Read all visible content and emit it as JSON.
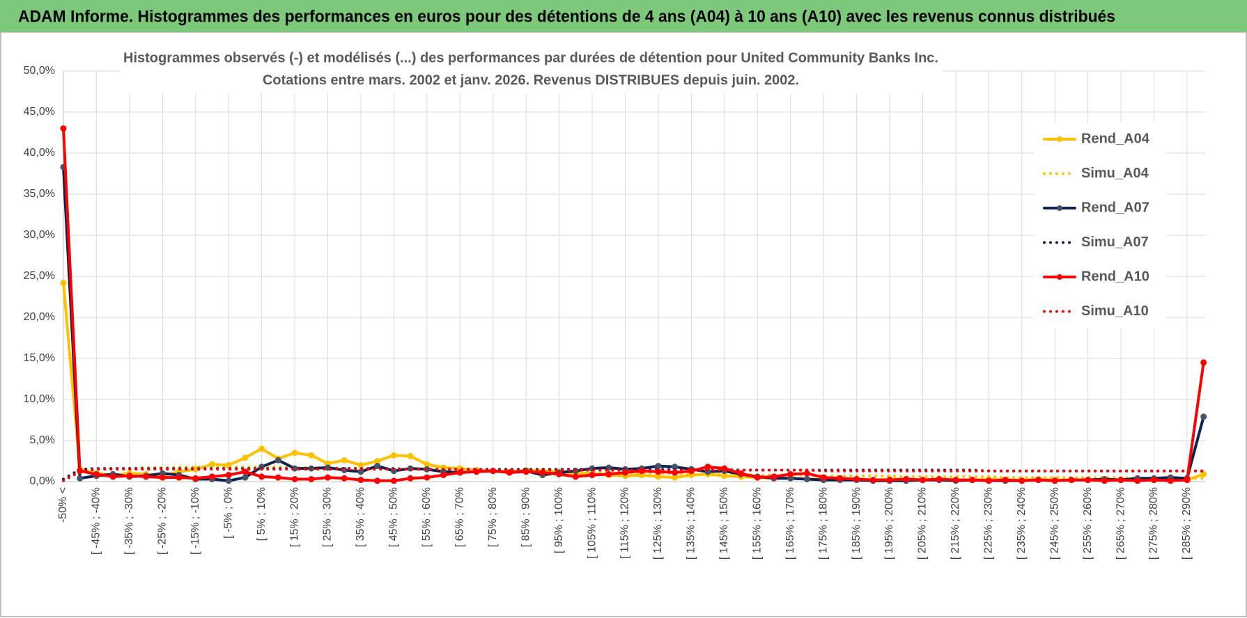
{
  "chart_data": {
    "type": "line",
    "title": "ADAM Informe. Histogrammes des performances en euros pour des détentions de 4 ans (A04) à 10 ans (A10) avec les revenus connus distribués",
    "subtitle": [
      "Histogrammes observés (-) et modélisés (...) des performances par durées de détention pour United Community Banks Inc.",
      "Cotations entre mars. 2002  et janv. 2026. Revenus DISTRIBUES depuis juin. 2002."
    ],
    "categories": [
      "-50% <",
      null,
      "[ -45% ; -40%",
      null,
      "[ -35% ; -30%",
      null,
      "[ -25% ; -20%",
      null,
      "[ -15% ; -10%",
      null,
      "[ -5% ; 0%",
      null,
      "[ 5% ; 10%",
      null,
      "[ 15% ; 20%",
      null,
      "[ 25% ; 30%",
      null,
      "[ 35% ; 40%",
      null,
      "[ 45% ; 50%",
      null,
      "[ 55% ; 60%",
      null,
      "[ 65% ; 70%",
      null,
      "[ 75% ; 80%",
      null,
      "[ 85% ; 90%",
      null,
      "[ 95% ; 100%",
      null,
      "[ 105% ; 110%",
      null,
      "[ 115% ; 120%",
      null,
      "[ 125% ; 130%",
      null,
      "[ 135% ; 140%",
      null,
      "[ 145% ; 150%",
      null,
      "[ 155% ; 160%",
      null,
      "[ 165% ; 170%",
      null,
      "[ 175% ; 180%",
      null,
      "[ 185% ; 190%",
      null,
      "[ 195% ; 200%",
      null,
      "[ 205% ; 210%",
      null,
      "[ 215% ; 220%",
      null,
      "[ 225% ; 230%",
      null,
      "[ 235% ; 240%",
      null,
      "[ 245% ; 250%",
      null,
      "[ 255% ; 260%",
      null,
      "[ 265% ; 270%",
      null,
      "[ 275% ; 280%",
      null,
      "[ 285% ; 290%",
      null
    ],
    "series": [
      {
        "name": "Rend_A04",
        "color": "#FFC000",
        "line_style": "solid",
        "markers": true,
        "values": [
          24.2,
          1.5,
          1.0,
          0.8,
          1.0,
          0.9,
          0.7,
          1.2,
          1.5,
          2.1,
          2.0,
          2.9,
          4.0,
          2.8,
          3.5,
          3.2,
          2.2,
          2.6,
          2.0,
          2.5,
          3.2,
          3.1,
          2.1,
          1.7,
          1.6,
          1.4,
          1.3,
          1.2,
          1.4,
          1.3,
          1.2,
          1.0,
          1.0,
          0.8,
          0.7,
          0.8,
          0.6,
          0.5,
          0.8,
          0.9,
          0.7,
          0.6,
          0.5,
          0.4,
          0.4,
          0.3,
          0.3,
          0.3,
          0.3,
          0.2,
          0.3,
          0.3,
          0.2,
          0.3,
          0.2,
          0.2,
          0.3,
          0.2,
          0.2,
          0.3,
          0.2,
          0.2,
          0.2,
          0.2,
          0.2,
          0.2,
          0.2,
          0.2,
          0.2,
          0.9
        ]
      },
      {
        "name": "Simu_A04",
        "color": "#FFC000",
        "line_style": "dotted",
        "markers": false,
        "values": [
          0.3,
          1.4,
          1.5,
          1.6,
          1.6,
          1.7,
          1.7,
          1.8,
          1.8,
          1.8,
          1.8,
          1.8,
          1.8,
          1.8,
          1.7,
          1.7,
          1.7,
          1.6,
          1.6,
          1.6,
          1.5,
          1.5,
          1.5,
          1.4,
          1.4,
          1.4,
          1.3,
          1.3,
          1.3,
          1.2,
          1.2,
          1.2,
          1.1,
          1.1,
          1.1,
          1.0,
          1.0,
          1.0,
          0.9,
          0.9,
          0.9,
          0.9,
          0.8,
          0.8,
          0.8,
          0.8,
          0.7,
          0.7,
          0.7,
          0.7,
          0.7,
          0.6,
          0.6,
          0.6,
          0.6,
          0.6,
          0.6,
          0.5,
          0.5,
          0.5,
          0.5,
          0.5,
          0.5,
          0.5,
          0.5,
          0.4,
          0.4,
          0.4,
          0.4,
          0.4
        ]
      },
      {
        "name": "Rend_A07",
        "color": "#0E2151",
        "line_style": "solid",
        "markers": true,
        "values": [
          38.3,
          0.4,
          0.7,
          0.9,
          0.6,
          0.7,
          1.0,
          0.8,
          0.3,
          0.3,
          0.1,
          0.5,
          1.8,
          2.6,
          1.6,
          1.6,
          1.7,
          1.4,
          1.2,
          1.9,
          1.3,
          1.6,
          1.5,
          1.2,
          1.1,
          1.2,
          1.3,
          1.1,
          1.3,
          0.8,
          1.1,
          1.3,
          1.6,
          1.7,
          1.5,
          1.6,
          1.9,
          1.8,
          1.5,
          1.2,
          1.3,
          0.9,
          0.6,
          0.4,
          0.4,
          0.3,
          0.2,
          0.2,
          0.2,
          0.1,
          0.1,
          0.1,
          0.2,
          0.2,
          0.1,
          0.2,
          0.1,
          0.1,
          0.1,
          0.2,
          0.1,
          0.2,
          0.2,
          0.3,
          0.2,
          0.4,
          0.4,
          0.5,
          0.4,
          7.9
        ]
      },
      {
        "name": "Simu_A07",
        "color": "#0E2151",
        "line_style": "dotted",
        "markers": false,
        "values": [
          0.3,
          1.5,
          1.6,
          1.6,
          1.6,
          1.6,
          1.6,
          1.6,
          1.6,
          1.6,
          1.6,
          1.6,
          1.6,
          1.6,
          1.6,
          1.6,
          1.6,
          1.6,
          1.6,
          1.6,
          1.6,
          1.5,
          1.5,
          1.5,
          1.5,
          1.5,
          1.5,
          1.5,
          1.5,
          1.5,
          1.5,
          1.5,
          1.5,
          1.5,
          1.5,
          1.5,
          1.5,
          1.5,
          1.5,
          1.5,
          1.5,
          1.4,
          1.4,
          1.4,
          1.4,
          1.4,
          1.4,
          1.4,
          1.4,
          1.4,
          1.4,
          1.4,
          1.4,
          1.4,
          1.4,
          1.4,
          1.3,
          1.3,
          1.3,
          1.3,
          1.3,
          1.3,
          1.3,
          1.3,
          1.3,
          1.3,
          1.3,
          1.3,
          1.3,
          1.3
        ]
      },
      {
        "name": "Rend_A10",
        "color": "#FF0000",
        "line_style": "solid",
        "markers": true,
        "values": [
          43.0,
          1.3,
          0.9,
          0.6,
          0.7,
          0.6,
          0.5,
          0.5,
          0.4,
          0.6,
          0.8,
          1.2,
          0.6,
          0.5,
          0.3,
          0.3,
          0.5,
          0.4,
          0.2,
          0.1,
          0.1,
          0.4,
          0.5,
          0.8,
          1.1,
          1.2,
          1.3,
          1.1,
          1.2,
          1.1,
          0.9,
          0.6,
          0.8,
          0.9,
          1.1,
          1.3,
          1.2,
          1.1,
          1.3,
          1.8,
          1.6,
          1.0,
          0.5,
          0.6,
          0.9,
          1.0,
          0.5,
          0.4,
          0.3,
          0.2,
          0.2,
          0.3,
          0.2,
          0.3,
          0.2,
          0.2,
          0.1,
          0.2,
          0.1,
          0.2,
          0.1,
          0.2,
          0.2,
          0.1,
          0.2,
          0.1,
          0.2,
          0.1,
          0.2,
          14.5
        ]
      },
      {
        "name": "Simu_A10",
        "color": "#FF0000",
        "line_style": "dotted",
        "markers": false,
        "values": [
          0.1,
          1.2,
          1.5,
          1.5,
          1.5,
          1.5,
          1.5,
          1.5,
          1.5,
          1.5,
          1.5,
          1.5,
          1.5,
          1.5,
          1.5,
          1.5,
          1.5,
          1.5,
          1.5,
          1.5,
          1.5,
          1.5,
          1.5,
          1.5,
          1.5,
          1.5,
          1.4,
          1.4,
          1.4,
          1.4,
          1.4,
          1.4,
          1.4,
          1.4,
          1.4,
          1.4,
          1.4,
          1.4,
          1.4,
          1.4,
          1.4,
          1.4,
          1.4,
          1.4,
          1.4,
          1.4,
          1.3,
          1.3,
          1.3,
          1.3,
          1.3,
          1.3,
          1.3,
          1.3,
          1.3,
          1.3,
          1.3,
          1.3,
          1.3,
          1.3,
          1.3,
          1.3,
          1.3,
          1.3,
          1.3,
          1.3,
          1.3,
          1.3,
          1.3,
          1.3
        ]
      }
    ],
    "ylim": [
      0,
      50
    ],
    "yticks": [
      {
        "value": 0,
        "label": "0,0%"
      },
      {
        "value": 5,
        "label": "5,0%"
      },
      {
        "value": 10,
        "label": "10,0%"
      },
      {
        "value": 15,
        "label": "15,0%"
      },
      {
        "value": 20,
        "label": "20,0%"
      },
      {
        "value": 25,
        "label": "25,0%"
      },
      {
        "value": 30,
        "label": "30,0%"
      },
      {
        "value": 35,
        "label": "35,0%"
      },
      {
        "value": 40,
        "label": "40,0%"
      },
      {
        "value": 45,
        "label": "45,0%"
      },
      {
        "value": 50,
        "label": "50,0%"
      }
    ],
    "grid": true,
    "legend": "right"
  }
}
